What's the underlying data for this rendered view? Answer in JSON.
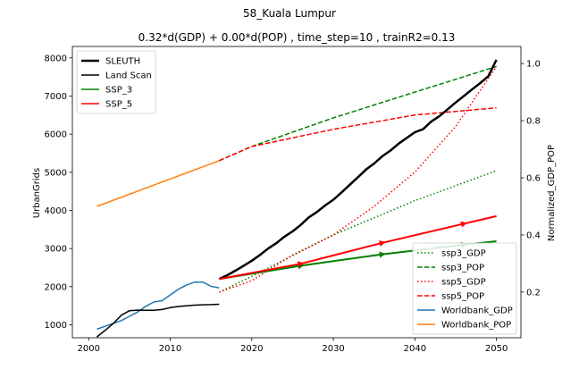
{
  "chart_data": {
    "type": "line",
    "title": "58_Kuala Lumpur",
    "subtitle": "0.32*d(GDP) + 0.00*d(POP) , time_step=10 , trainR2=0.13",
    "xlabel": "",
    "ylabel": "UrbanGrids",
    "y2label": "Normalized_GDP_POP",
    "xlim": [
      1998,
      2053
    ],
    "ylim": [
      660,
      8300
    ],
    "y2lim": [
      0.04,
      1.06
    ],
    "xticks": [
      "2000",
      "2010",
      "2020",
      "2030",
      "2040",
      "2050"
    ],
    "yticks": [
      "1000",
      "2000",
      "3000",
      "4000",
      "5000",
      "6000",
      "7000",
      "8000"
    ],
    "y2ticks": [
      "0.2",
      "0.4",
      "0.6",
      "0.8",
      "1.0"
    ],
    "legend_left": {
      "position": "upper-left",
      "entries": [
        {
          "label": "SLEUTH",
          "color": "#000000",
          "style": "solid-thick"
        },
        {
          "label": "Land Scan",
          "color": "#000000",
          "style": "solid"
        },
        {
          "label": "SSP_3",
          "color": "#008000",
          "style": "solid"
        },
        {
          "label": "SSP_5",
          "color": "#ff0000",
          "style": "solid"
        }
      ]
    },
    "legend_right": {
      "position": "lower-right",
      "entries": [
        {
          "label": "ssp3_GDP",
          "color": "#008000",
          "style": "dotted"
        },
        {
          "label": "ssp3_POP",
          "color": "#008000",
          "style": "dashed"
        },
        {
          "label": "ssp5_GDP",
          "color": "#ff0000",
          "style": "dotted"
        },
        {
          "label": "ssp5_POP",
          "color": "#ff0000",
          "style": "dashed"
        },
        {
          "label": "Worldbank_GDP",
          "color": "#1f77b4",
          "style": "solid"
        },
        {
          "label": "Worldbank_POP",
          "color": "#ff7f0e",
          "style": "solid"
        }
      ]
    },
    "series_left_axis": [
      {
        "name": "SLEUTH",
        "color": "#000000",
        "style": "solid-thick",
        "x": [
          2016,
          2017,
          2018,
          2019,
          2020,
          2021,
          2022,
          2023,
          2024,
          2025,
          2026,
          2027,
          2028,
          2029,
          2030,
          2031,
          2032,
          2033,
          2034,
          2035,
          2036,
          2037,
          2038,
          2039,
          2040,
          2041,
          2042,
          2043,
          2044,
          2045,
          2046,
          2047,
          2048,
          2049,
          2050
        ],
        "y": [
          2200,
          2300,
          2420,
          2550,
          2680,
          2830,
          3000,
          3140,
          3310,
          3450,
          3620,
          3820,
          3960,
          4130,
          4280,
          4470,
          4670,
          4870,
          5070,
          5230,
          5420,
          5570,
          5750,
          5900,
          6050,
          6130,
          6330,
          6470,
          6650,
          6830,
          7000,
          7170,
          7340,
          7520,
          7950
        ]
      },
      {
        "name": "Land Scan",
        "color": "#000000",
        "style": "solid",
        "x": [
          2001,
          2002,
          2003,
          2004,
          2005,
          2006,
          2007,
          2008,
          2009,
          2010,
          2011,
          2012,
          2013,
          2014,
          2015,
          2016
        ],
        "y": [
          680,
          850,
          1030,
          1250,
          1370,
          1385,
          1380,
          1380,
          1400,
          1450,
          1480,
          1500,
          1515,
          1525,
          1530,
          1540
        ]
      },
      {
        "name": "SSP_3",
        "color": "#008000",
        "style": "solid-arrows",
        "x": [
          2016,
          2026,
          2036,
          2046,
          2050
        ],
        "y": [
          2200,
          2550,
          2850,
          3100,
          3190
        ]
      },
      {
        "name": "SSP_5",
        "color": "#ff0000",
        "style": "solid-arrows",
        "x": [
          2016,
          2026,
          2036,
          2046,
          2050
        ],
        "y": [
          2200,
          2600,
          3150,
          3650,
          3850
        ]
      }
    ],
    "series_right_axis": [
      {
        "name": "ssp3_GDP",
        "color": "#008000",
        "style": "dotted",
        "x": [
          2016,
          2020,
          2030,
          2040,
          2050
        ],
        "y": [
          0.2,
          0.255,
          0.4,
          0.52,
          0.625
        ]
      },
      {
        "name": "ssp3_POP",
        "color": "#008000",
        "style": "dashed",
        "x": [
          2016,
          2020,
          2030,
          2040,
          2050
        ],
        "y": [
          0.66,
          0.71,
          0.81,
          0.9,
          0.99
        ]
      },
      {
        "name": "ssp5_GDP",
        "color": "#ff0000",
        "style": "dotted",
        "x": [
          2016,
          2020,
          2025,
          2030,
          2035,
          2040,
          2045,
          2050
        ],
        "y": [
          0.2,
          0.24,
          0.33,
          0.4,
          0.5,
          0.62,
          0.78,
          0.99
        ]
      },
      {
        "name": "ssp5_POP",
        "color": "#ff0000",
        "style": "dashed",
        "x": [
          2016,
          2020,
          2030,
          2040,
          2050
        ],
        "y": [
          0.66,
          0.71,
          0.77,
          0.82,
          0.845
        ]
      },
      {
        "name": "Worldbank_GDP",
        "color": "#1f77b4",
        "style": "solid",
        "x": [
          2001,
          2002,
          2003,
          2004,
          2005,
          2006,
          2007,
          2008,
          2009,
          2010,
          2011,
          2012,
          2013,
          2014,
          2015,
          2016
        ],
        "y": [
          0.07,
          0.08,
          0.09,
          0.1,
          0.115,
          0.13,
          0.15,
          0.165,
          0.17,
          0.19,
          0.21,
          0.225,
          0.235,
          0.235,
          0.22,
          0.215
        ]
      },
      {
        "name": "Worldbank_POP",
        "color": "#ff7f0e",
        "style": "solid",
        "x": [
          2001,
          2016
        ],
        "y": [
          0.5,
          0.66
        ]
      }
    ]
  }
}
